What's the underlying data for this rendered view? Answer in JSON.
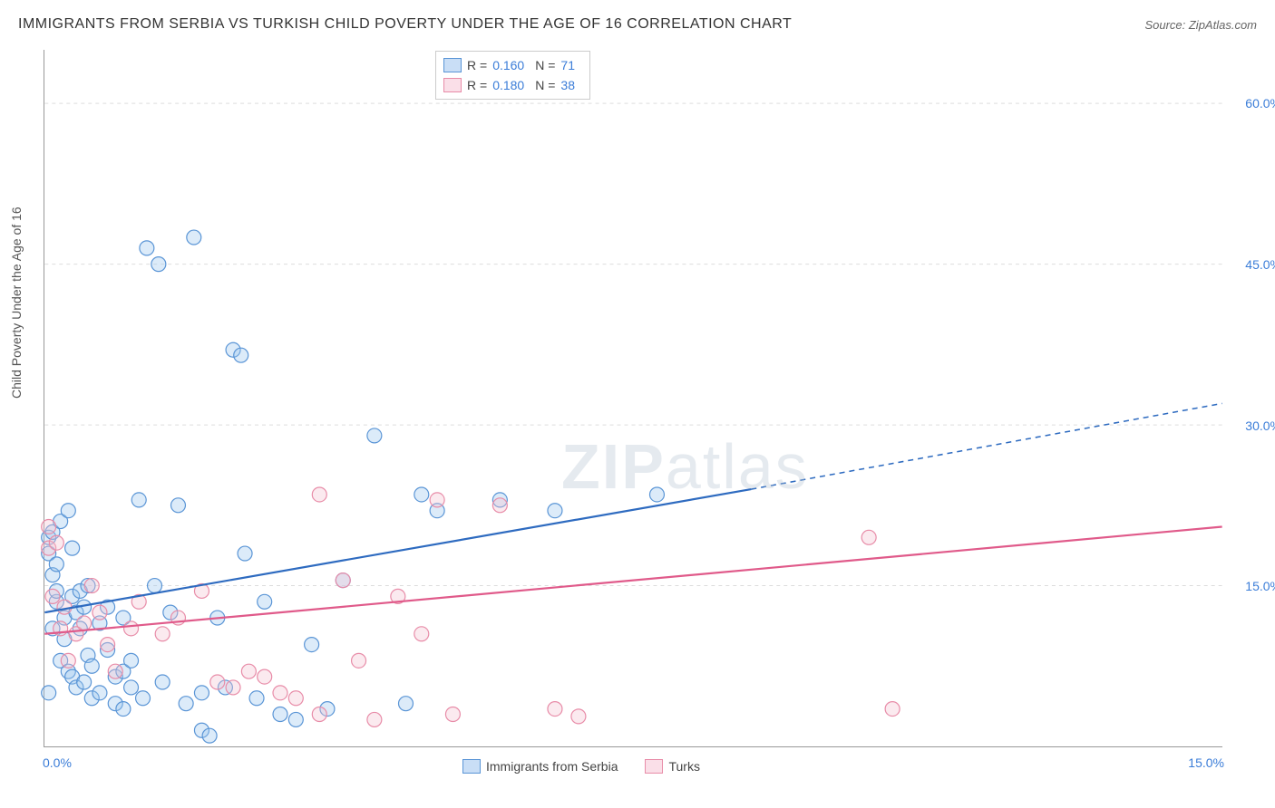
{
  "title": "IMMIGRANTS FROM SERBIA VS TURKISH CHILD POVERTY UNDER THE AGE OF 16 CORRELATION CHART",
  "source_label": "Source: ZipAtlas.com",
  "y_axis_label": "Child Poverty Under the Age of 16",
  "watermark_a": "ZIP",
  "watermark_b": "atlas",
  "chart": {
    "type": "scatter",
    "xlim": [
      0,
      15
    ],
    "ylim": [
      0,
      65
    ],
    "x_label_start": "0.0%",
    "x_label_end": "15.0%",
    "y_ticks": [
      15,
      30,
      45,
      60
    ],
    "y_tick_labels": [
      "15.0%",
      "30.0%",
      "45.0%",
      "60.0%"
    ],
    "y_tick_color": "#3b7dd8",
    "x_tick_color": "#3b7dd8",
    "background_color": "#ffffff",
    "grid_color": "#dddddd",
    "grid_dash": "4,4",
    "marker_radius": 8,
    "marker_opacity": 0.35,
    "stroke_width": 1.2,
    "series": [
      {
        "name": "Immigrants from Serbia",
        "color_fill": "#9cc5ee",
        "color_stroke": "#5a95d6",
        "R": "0.160",
        "N": "71",
        "regression": {
          "x1": 0,
          "y1": 12.5,
          "x2": 9.0,
          "y2": 24.0,
          "x2_dash": 15,
          "y2_dash": 32,
          "color": "#2e6bc0",
          "width": 2.2
        },
        "points": [
          [
            0.05,
            19.5
          ],
          [
            0.05,
            18.0
          ],
          [
            0.1,
            20.0
          ],
          [
            0.1,
            16.0
          ],
          [
            0.15,
            13.5
          ],
          [
            0.15,
            17.0
          ],
          [
            0.15,
            14.5
          ],
          [
            0.2,
            21.0
          ],
          [
            0.2,
            8.0
          ],
          [
            0.25,
            12.0
          ],
          [
            0.25,
            10.0
          ],
          [
            0.3,
            22.0
          ],
          [
            0.3,
            7.0
          ],
          [
            0.35,
            14.0
          ],
          [
            0.35,
            6.5
          ],
          [
            0.4,
            12.5
          ],
          [
            0.4,
            5.5
          ],
          [
            0.45,
            11.0
          ],
          [
            0.45,
            14.5
          ],
          [
            0.5,
            6.0
          ],
          [
            0.5,
            13.0
          ],
          [
            0.55,
            15.0
          ],
          [
            0.55,
            8.5
          ],
          [
            0.6,
            4.5
          ],
          [
            0.6,
            7.5
          ],
          [
            0.7,
            5.0
          ],
          [
            0.7,
            11.5
          ],
          [
            0.8,
            9.0
          ],
          [
            0.8,
            13.0
          ],
          [
            0.9,
            4.0
          ],
          [
            0.9,
            6.5
          ],
          [
            1.0,
            12.0
          ],
          [
            1.0,
            7.0
          ],
          [
            1.1,
            5.5
          ],
          [
            1.1,
            8.0
          ],
          [
            1.2,
            23.0
          ],
          [
            1.25,
            4.5
          ],
          [
            1.3,
            46.5
          ],
          [
            1.4,
            15.0
          ],
          [
            1.45,
            45.0
          ],
          [
            1.5,
            6.0
          ],
          [
            1.6,
            12.5
          ],
          [
            1.7,
            22.5
          ],
          [
            1.8,
            4.0
          ],
          [
            1.9,
            47.5
          ],
          [
            2.0,
            5.0
          ],
          [
            2.0,
            1.5
          ],
          [
            2.1,
            1.0
          ],
          [
            2.2,
            12.0
          ],
          [
            2.3,
            5.5
          ],
          [
            2.4,
            37.0
          ],
          [
            2.5,
            36.5
          ],
          [
            2.55,
            18.0
          ],
          [
            2.7,
            4.5
          ],
          [
            2.8,
            13.5
          ],
          [
            3.0,
            3.0
          ],
          [
            3.2,
            2.5
          ],
          [
            3.4,
            9.5
          ],
          [
            3.6,
            3.5
          ],
          [
            3.8,
            15.5
          ],
          [
            4.2,
            29.0
          ],
          [
            4.6,
            4.0
          ],
          [
            4.8,
            23.5
          ],
          [
            5.0,
            22.0
          ],
          [
            5.8,
            23.0
          ],
          [
            6.5,
            22.0
          ],
          [
            7.8,
            23.5
          ],
          [
            0.05,
            5.0
          ],
          [
            0.1,
            11.0
          ],
          [
            0.35,
            18.5
          ],
          [
            1.0,
            3.5
          ]
        ]
      },
      {
        "name": "Turks",
        "color_fill": "#f4c3d2",
        "color_stroke": "#e88ca8",
        "R": "0.180",
        "N": "38",
        "regression": {
          "x1": 0,
          "y1": 10.5,
          "x2": 15,
          "y2": 20.5,
          "color": "#e05a8a",
          "width": 2.2
        },
        "points": [
          [
            0.05,
            20.5
          ],
          [
            0.05,
            18.5
          ],
          [
            0.1,
            14.0
          ],
          [
            0.15,
            19.0
          ],
          [
            0.2,
            11.0
          ],
          [
            0.25,
            13.0
          ],
          [
            0.3,
            8.0
          ],
          [
            0.4,
            10.5
          ],
          [
            0.5,
            11.5
          ],
          [
            0.6,
            15.0
          ],
          [
            0.7,
            12.5
          ],
          [
            0.8,
            9.5
          ],
          [
            0.9,
            7.0
          ],
          [
            1.1,
            11.0
          ],
          [
            1.2,
            13.5
          ],
          [
            1.5,
            10.5
          ],
          [
            1.7,
            12.0
          ],
          [
            2.0,
            14.5
          ],
          [
            2.2,
            6.0
          ],
          [
            2.4,
            5.5
          ],
          [
            2.6,
            7.0
          ],
          [
            2.8,
            6.5
          ],
          [
            3.0,
            5.0
          ],
          [
            3.2,
            4.5
          ],
          [
            3.5,
            3.0
          ],
          [
            3.5,
            23.5
          ],
          [
            3.8,
            15.5
          ],
          [
            4.0,
            8.0
          ],
          [
            4.2,
            2.5
          ],
          [
            4.5,
            14.0
          ],
          [
            4.8,
            10.5
          ],
          [
            5.0,
            23.0
          ],
          [
            5.2,
            3.0
          ],
          [
            5.8,
            22.5
          ],
          [
            6.5,
            3.5
          ],
          [
            6.8,
            2.8
          ],
          [
            10.5,
            19.5
          ],
          [
            10.8,
            3.5
          ]
        ]
      }
    ]
  },
  "stats_legend": {
    "r_label": "R =",
    "n_label": "N ="
  },
  "bottom_legend_series1": "Immigrants from Serbia",
  "bottom_legend_series2": "Turks"
}
